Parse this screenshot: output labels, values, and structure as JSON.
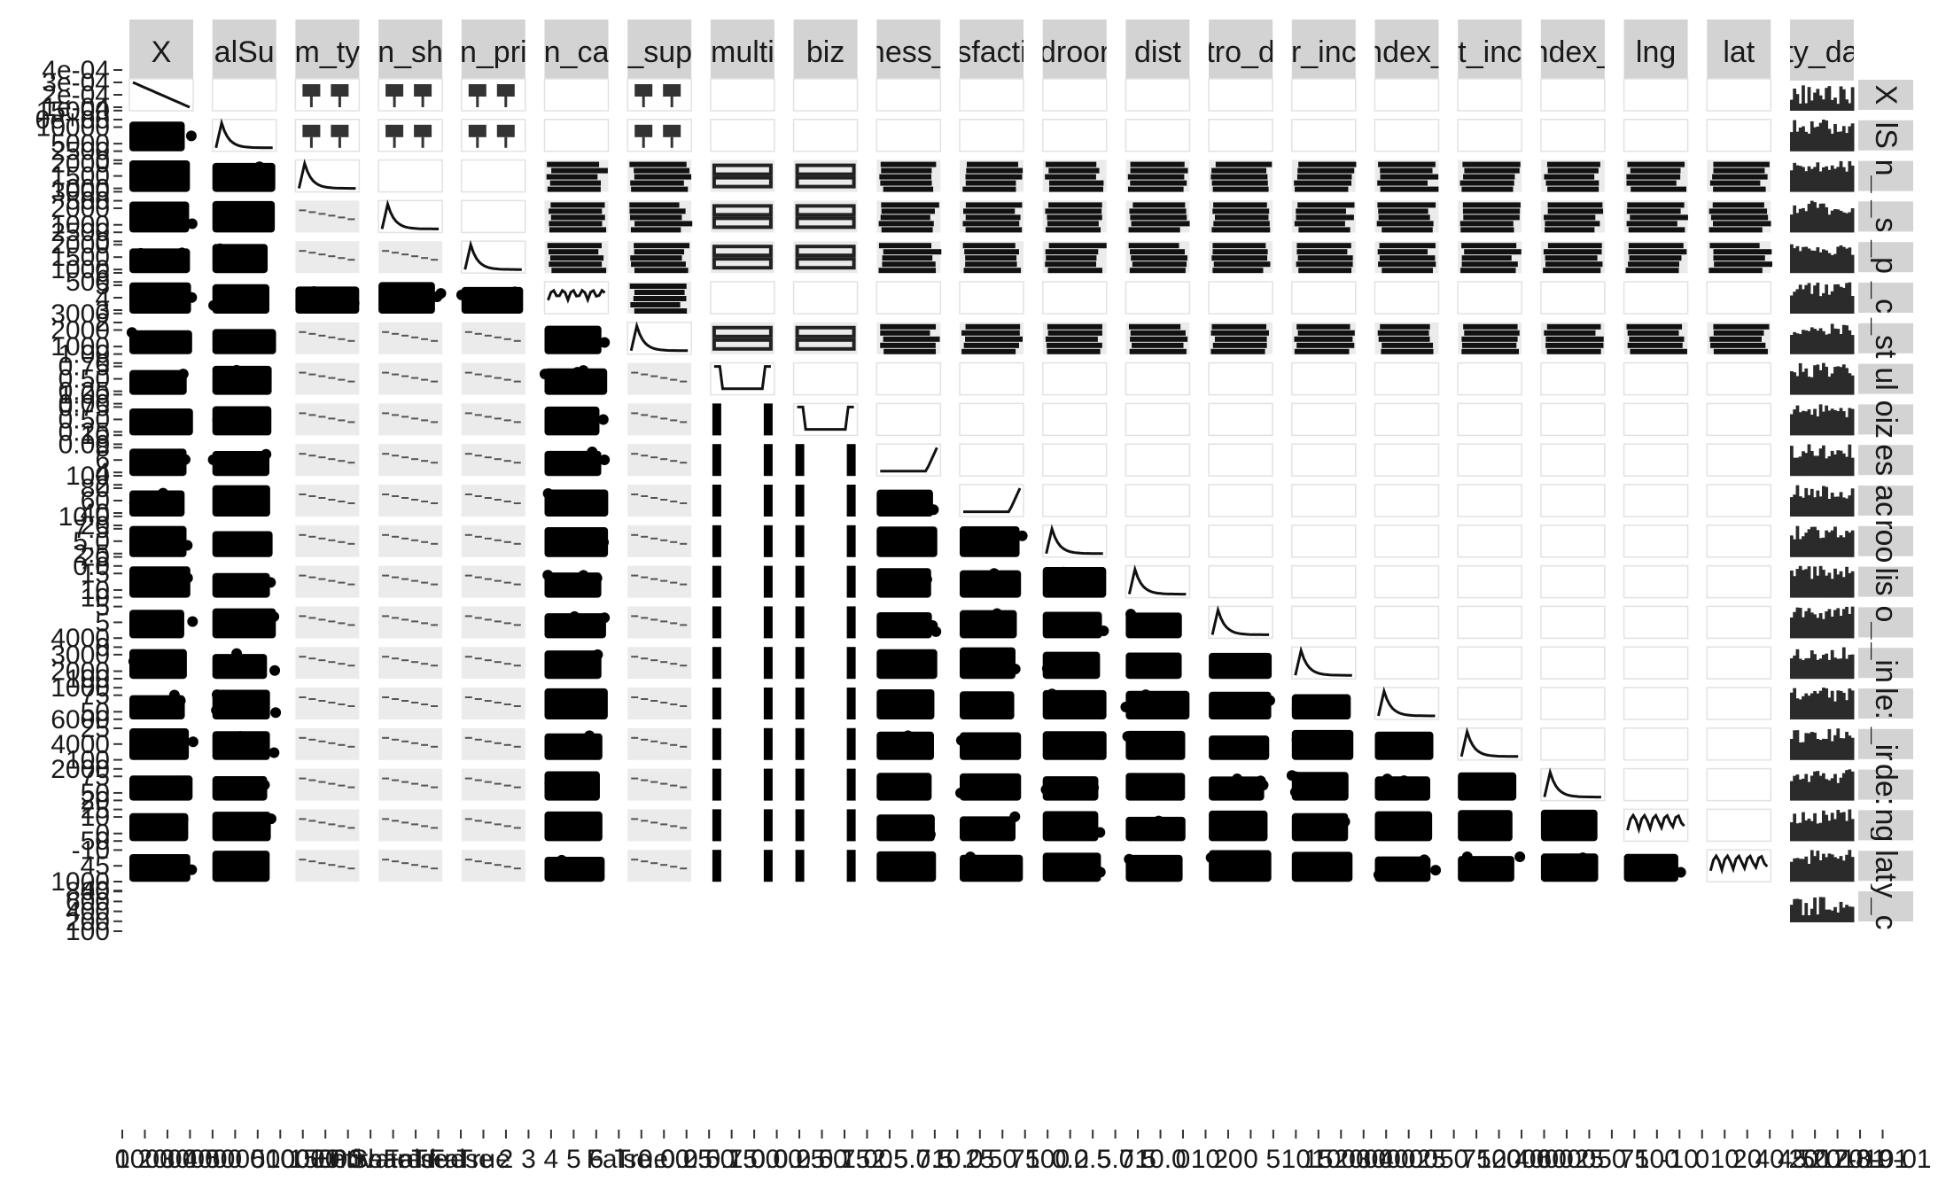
{
  "chart_data": {
    "type": "scatter",
    "subtype": "pairs-matrix",
    "column_strips": [
      "X",
      "alSu",
      "m_ty",
      "n_sh",
      "n_pri",
      "n_ca",
      "_sup",
      "multi",
      "biz",
      "ness_",
      "sfacti",
      "droor",
      "dist",
      "tro_d",
      "r_inc",
      "ndex_",
      "t_inc",
      "ndex_",
      "lng",
      "lat",
      "ty_da"
    ],
    "row_strips": [
      "X",
      "lS",
      "n_",
      "_s",
      "_p",
      "_c",
      "_st",
      "ul",
      "oiz",
      "es",
      "ac",
      "roo",
      "lis",
      "o_",
      "_in",
      "le:",
      "_ir",
      "de:",
      "ng",
      "lat",
      "y_c"
    ],
    "y_tick_labels": [
      [
        "4e-04",
        "3e-04",
        "2e-04",
        "1e-04",
        "0e+00"
      ],
      [
        "15000",
        "10000",
        "5000",
        "0"
      ],
      [
        "2500",
        "2000",
        "1500",
        "1000",
        "500"
      ],
      [
        "3000",
        "2000",
        "1000",
        "0"
      ],
      [
        "2500",
        "2000",
        "1500",
        "1000",
        "500"
      ],
      [
        "6",
        "5",
        "4",
        "3",
        "2"
      ],
      [
        "3000",
        "2000",
        "1000",
        "0"
      ],
      [
        "1.00",
        "0.75",
        "0.50",
        "0.25",
        "0.00"
      ],
      [
        "1.00",
        "0.75",
        "0.50",
        "0.25",
        "0.00"
      ],
      [
        "10",
        "8",
        "6",
        "4",
        "2"
      ],
      [
        "100",
        "80",
        "60",
        "40",
        "20"
      ],
      [
        "10.0",
        "7.5",
        "5.0",
        "2.5",
        "0.0"
      ],
      [
        "20",
        "15",
        "10",
        "5"
      ],
      [
        "10",
        "5",
        "0"
      ],
      [
        "4000",
        "3000",
        "2000",
        "1000"
      ],
      [
        "100",
        "75",
        "50",
        "25"
      ],
      [
        "6000",
        "4000",
        "2000"
      ],
      [
        "100",
        "75",
        "50",
        "25"
      ],
      [
        "20",
        "10",
        "0",
        "-10"
      ],
      [
        "50",
        "45",
        "40"
      ],
      [
        "1000",
        "800",
        "600",
        "400",
        "200",
        "100"
      ]
    ],
    "x_tick_labels": [
      "0",
      "1000",
      "2000",
      "3000",
      "4000",
      "5000",
      "0",
      "5000",
      "10000",
      "15000",
      "Entire",
      "Private",
      "Shared",
      "False",
      "True",
      "False",
      "True",
      "2",
      "3",
      "4",
      "5",
      "6",
      "False",
      "True",
      "0.00",
      "0.25",
      "0.50",
      "0.75",
      "1.00",
      "0.00",
      "0.25",
      "0.50",
      "0.75",
      "1.00",
      "2.5",
      "5.0",
      "7.5",
      "10.0",
      "25",
      "50",
      "75",
      "100",
      "0.0",
      "2.5",
      "5.0",
      "7.5",
      "10.0",
      "0",
      "10",
      "20",
      "0",
      "5",
      "10",
      "15",
      "1000",
      "2000",
      "3000",
      "4000",
      "25",
      "50",
      "75",
      "100",
      "2000",
      "4000",
      "6000",
      "25",
      "50",
      "75",
      "100",
      "-10",
      "0",
      "10",
      "20",
      "40",
      "45",
      "50",
      "2017-01",
      "2018-01",
      "2019-01"
    ],
    "grid": true,
    "legend": "none"
  }
}
